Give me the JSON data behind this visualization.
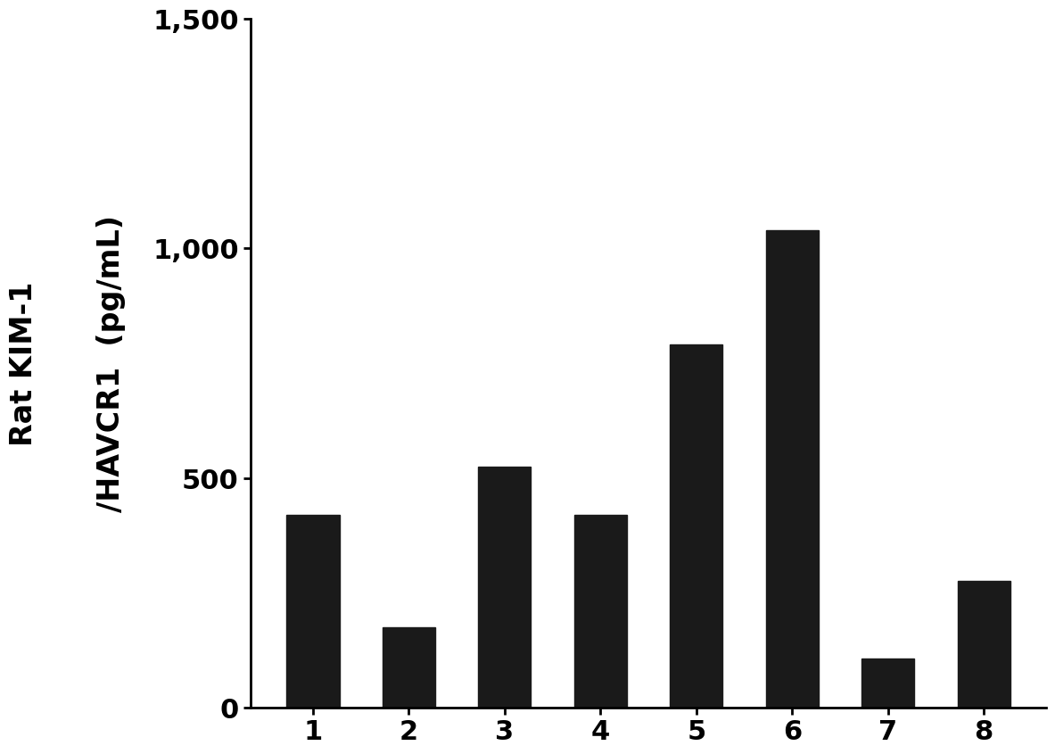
{
  "categories": [
    "1",
    "2",
    "3",
    "4",
    "5",
    "6",
    "7",
    "8"
  ],
  "values": [
    420.0,
    175.0,
    525.0,
    420.0,
    790.0,
    1038.5,
    105.6,
    275.0
  ],
  "bar_color": "#1a1a1a",
  "ylabel_line1": "Rat KIM-1",
  "ylabel_line2": "/HAVCR1  (pg/mL)",
  "ylim": [
    0,
    1500
  ],
  "yticks": [
    0,
    500,
    1000,
    1500
  ],
  "ytick_labels": [
    "0",
    "500",
    "1,000",
    "1,500"
  ],
  "bar_width": 0.55,
  "background_color": "#ffffff",
  "spine_color": "#000000",
  "tick_color": "#000000",
  "label_fontsize": 24,
  "tick_fontsize": 22,
  "label_fontweight": "bold"
}
